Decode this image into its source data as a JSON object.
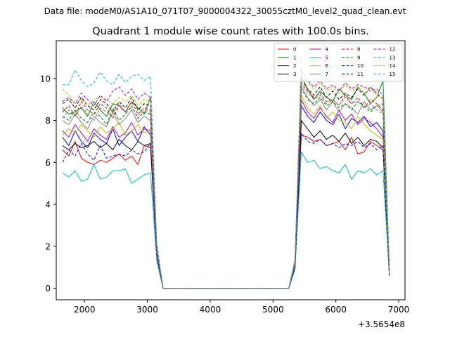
{
  "figure": {
    "suptitle": "Data file: modeM0/AS1A10_071T07_9000004322_30055cztM0_level2_quad_clean.evt"
  },
  "chart_data": {
    "type": "line",
    "title": "Quadrant 1 module wise count rates with 100.0s bins.",
    "xlabel": "",
    "ylabel": "",
    "x_offset_label": "+3.5654e8",
    "xlim": [
      1550,
      7100
    ],
    "ylim": [
      -0.55,
      11.8
    ],
    "xticks": [
      2000,
      3000,
      4000,
      5000,
      6000,
      7000
    ],
    "yticks": [
      0,
      2,
      4,
      6,
      8,
      10
    ],
    "grid": false,
    "legend": {
      "placement": "top-right",
      "columns": 4
    },
    "x": [
      1650,
      1750,
      1850,
      1950,
      2050,
      2150,
      2250,
      2350,
      2450,
      2550,
      2650,
      2750,
      2850,
      2950,
      3050,
      3150,
      3250,
      3350,
      3450,
      3550,
      3650,
      3750,
      3850,
      3950,
      4050,
      4150,
      4250,
      4350,
      4450,
      4550,
      4650,
      4750,
      4850,
      4950,
      5050,
      5150,
      5250,
      5350,
      5450,
      5550,
      5650,
      5750,
      5850,
      5950,
      6050,
      6150,
      6250,
      6350,
      6450,
      6550,
      6650,
      6750,
      6850
    ],
    "series": [
      {
        "name": "0",
        "color": "#ff0000",
        "dash": "solid",
        "values": [
          6.6,
          6.3,
          7.0,
          6.2,
          6.0,
          5.9,
          6.1,
          6.0,
          6.2,
          6.4,
          6.1,
          6.3,
          5.9,
          6.8,
          6.7,
          1.5,
          0,
          0,
          0,
          0,
          0,
          0,
          0,
          0,
          0,
          0,
          0,
          0,
          0,
          0,
          0,
          0,
          0,
          0,
          0,
          0,
          0,
          1.0,
          7.3,
          7.2,
          7.0,
          7.1,
          6.8,
          6.9,
          7.0,
          6.6,
          7.2,
          6.4,
          6.5,
          7.0,
          6.8,
          6.6,
          0.8
        ]
      },
      {
        "name": "1",
        "color": "#008000",
        "dash": "solid",
        "values": [
          8.6,
          8.3,
          8.4,
          8.6,
          8.2,
          8.9,
          8.5,
          8.2,
          8.8,
          8.7,
          8.4,
          8.9,
          8.6,
          8.3,
          9.1,
          1.8,
          0,
          0,
          0,
          0,
          0,
          0,
          0,
          0,
          0,
          0,
          0,
          0,
          0,
          0,
          0,
          0,
          0,
          0,
          0,
          0,
          0,
          1.3,
          10.1,
          9.5,
          9.0,
          9.4,
          9.1,
          8.9,
          9.5,
          9.2,
          9.0,
          9.6,
          9.3,
          8.8,
          9.1,
          9.9,
          0.9
        ]
      },
      {
        "name": "2",
        "color": "#0000ff",
        "dash": "solid",
        "values": [
          7.2,
          6.8,
          7.5,
          7.0,
          6.7,
          7.4,
          7.1,
          6.9,
          7.6,
          6.8,
          7.2,
          7.5,
          7.0,
          7.7,
          7.3,
          1.6,
          0,
          0,
          0,
          0,
          0,
          0,
          0,
          0,
          0,
          0,
          0,
          0,
          0,
          0,
          0,
          0,
          0,
          0,
          0,
          0,
          0,
          1.1,
          8.7,
          8.2,
          7.9,
          8.4,
          8.0,
          7.8,
          8.3,
          7.6,
          8.1,
          7.9,
          8.2,
          7.7,
          7.9,
          7.5,
          0.8
        ]
      },
      {
        "name": "3",
        "color": "#000000",
        "dash": "solid",
        "values": [
          6.8,
          6.6,
          6.9,
          6.7,
          6.8,
          7.0,
          6.7,
          6.9,
          6.6,
          7.1,
          6.8,
          6.6,
          7.0,
          6.8,
          6.9,
          1.6,
          0,
          0,
          0,
          0,
          0,
          0,
          0,
          0,
          0,
          0,
          0,
          0,
          0,
          0,
          0,
          0,
          0,
          0,
          0,
          0,
          0,
          1.0,
          8.0,
          7.6,
          7.2,
          7.5,
          7.1,
          7.3,
          7.0,
          7.4,
          6.9,
          7.2,
          6.8,
          7.1,
          7.0,
          6.7,
          0.6
        ]
      },
      {
        "name": "4",
        "color": "#bf00bf",
        "dash": "solid",
        "values": [
          7.5,
          7.2,
          7.8,
          7.4,
          7.0,
          7.6,
          7.3,
          7.1,
          7.7,
          7.2,
          7.4,
          7.9,
          7.3,
          7.6,
          7.5,
          1.7,
          0,
          0,
          0,
          0,
          0,
          0,
          0,
          0,
          0,
          0,
          0,
          0,
          0,
          0,
          0,
          0,
          0,
          0,
          0,
          0,
          0,
          1.2,
          9.0,
          8.4,
          8.1,
          8.6,
          8.2,
          7.9,
          8.5,
          8.0,
          8.3,
          7.8,
          8.1,
          7.9,
          7.6,
          7.2,
          0.8
        ]
      },
      {
        "name": "5",
        "color": "#00bfbf",
        "dash": "solid",
        "values": [
          5.5,
          5.3,
          5.6,
          5.1,
          5.2,
          5.9,
          5.2,
          5.3,
          5.6,
          5.6,
          5.7,
          5.0,
          5.2,
          5.4,
          5.5,
          1.3,
          0,
          0,
          0,
          0,
          0,
          0,
          0,
          0,
          0,
          0,
          0,
          0,
          0,
          0,
          0,
          0,
          0,
          0,
          0,
          0,
          0,
          0.9,
          6.5,
          6.0,
          6.1,
          5.7,
          5.8,
          5.6,
          5.5,
          5.9,
          5.2,
          5.6,
          5.5,
          5.7,
          5.4,
          5.6,
          0.7
        ]
      },
      {
        "name": "6",
        "color": "#bfbf00",
        "dash": "solid",
        "values": [
          7.3,
          7.6,
          7.4,
          7.8,
          7.5,
          7.2,
          7.7,
          7.4,
          7.6,
          7.9,
          7.3,
          7.5,
          7.8,
          7.4,
          7.6,
          1.7,
          0,
          0,
          0,
          0,
          0,
          0,
          0,
          0,
          0,
          0,
          0,
          0,
          0,
          0,
          0,
          0,
          0,
          0,
          0,
          0,
          0,
          1.1,
          9.2,
          8.6,
          8.3,
          8.7,
          8.1,
          8.4,
          8.0,
          7.9,
          7.6,
          8.2,
          7.8,
          7.5,
          7.3,
          7.1,
          0.7
        ]
      },
      {
        "name": "7",
        "color": "#808080",
        "dash": "solid",
        "values": [
          8.0,
          7.8,
          8.3,
          7.9,
          7.6,
          8.2,
          7.9,
          7.7,
          8.4,
          7.8,
          8.1,
          8.5,
          7.9,
          8.2,
          8.0,
          1.8,
          0,
          0,
          0,
          0,
          0,
          0,
          0,
          0,
          0,
          0,
          0,
          0,
          0,
          0,
          0,
          0,
          0,
          0,
          0,
          0,
          0,
          1.2,
          9.6,
          9.1,
          8.7,
          9.0,
          8.5,
          8.9,
          8.4,
          8.8,
          8.6,
          8.3,
          8.9,
          8.5,
          8.7,
          8.4,
          0.8
        ]
      },
      {
        "name": "8",
        "color": "#ff0000",
        "dash": "dashed",
        "values": [
          8.4,
          8.7,
          8.2,
          8.9,
          8.5,
          8.3,
          8.8,
          8.6,
          8.1,
          8.7,
          8.4,
          8.9,
          8.3,
          8.6,
          8.5,
          1.9,
          0,
          0,
          0,
          0,
          0,
          0,
          0,
          0,
          0,
          0,
          0,
          0,
          0,
          0,
          0,
          0,
          0,
          0,
          0,
          0,
          0,
          1.2,
          9.8,
          9.4,
          9.1,
          9.3,
          8.9,
          9.0,
          8.7,
          9.2,
          8.8,
          9.1,
          8.6,
          9.0,
          8.8,
          8.5,
          0.9
        ]
      },
      {
        "name": "9",
        "color": "#008000",
        "dash": "dashed",
        "values": [
          8.2,
          8.0,
          8.5,
          8.1,
          7.9,
          8.4,
          8.2,
          7.8,
          8.6,
          8.0,
          8.3,
          8.7,
          8.1,
          8.4,
          8.3,
          1.8,
          0,
          0,
          0,
          0,
          0,
          0,
          0,
          0,
          0,
          0,
          0,
          0,
          0,
          0,
          0,
          0,
          0,
          0,
          0,
          0,
          0,
          1.2,
          9.5,
          9.0,
          8.8,
          9.1,
          8.7,
          8.9,
          8.6,
          8.8,
          8.5,
          8.9,
          8.7,
          8.4,
          8.7,
          8.8,
          0.9
        ]
      },
      {
        "name": "10",
        "color": "#0000ff",
        "dash": "dashed",
        "values": [
          6.0,
          6.6,
          6.3,
          6.9,
          6.4,
          6.1,
          6.8,
          6.2,
          6.3,
          6.4,
          6.3,
          6.6,
          6.4,
          6.5,
          6.9,
          1.5,
          0,
          0,
          0,
          0,
          0,
          0,
          0,
          0,
          0,
          0,
          0,
          0,
          0,
          0,
          0,
          0,
          0,
          0,
          0,
          0,
          0,
          1.0,
          7.4,
          7.0,
          6.9,
          7.1,
          6.8,
          6.9,
          6.7,
          6.9,
          6.8,
          7.0,
          6.7,
          6.9,
          6.6,
          6.8,
          0.7
        ]
      },
      {
        "name": "11",
        "color": "#000000",
        "dash": "dashed",
        "values": [
          8.8,
          9.0,
          8.6,
          9.1,
          8.7,
          8.5,
          9.0,
          8.8,
          8.4,
          8.9,
          8.6,
          9.1,
          8.5,
          8.8,
          8.7,
          1.9,
          0,
          0,
          0,
          0,
          0,
          0,
          0,
          0,
          0,
          0,
          0,
          0,
          0,
          0,
          0,
          0,
          0,
          0,
          0,
          0,
          0,
          1.3,
          10.0,
          9.5,
          9.2,
          9.6,
          9.1,
          9.4,
          9.0,
          9.3,
          9.1,
          9.5,
          9.2,
          9.6,
          9.3,
          9.0,
          0.9
        ]
      },
      {
        "name": "12",
        "color": "#bf00bf",
        "dash": "dashed",
        "values": [
          8.9,
          9.1,
          8.8,
          9.3,
          9.0,
          8.7,
          9.2,
          8.9,
          9.4,
          9.6,
          9.2,
          9.5,
          9.0,
          9.3,
          9.1,
          2.0,
          0,
          0,
          0,
          0,
          0,
          0,
          0,
          0,
          0,
          0,
          0,
          0,
          0,
          0,
          0,
          0,
          0,
          0,
          0,
          0,
          0,
          1.3,
          10.4,
          9.9,
          9.6,
          9.9,
          9.5,
          9.7,
          9.4,
          9.8,
          9.5,
          9.7,
          9.6,
          9.4,
          9.5,
          9.2,
          1.0
        ]
      },
      {
        "name": "13",
        "color": "#00bfbf",
        "dash": "dashed",
        "values": [
          9.7,
          9.7,
          10.4,
          9.9,
          9.6,
          9.8,
          10.3,
          9.9,
          9.7,
          10.2,
          9.8,
          10.1,
          10.2,
          9.9,
          10.1,
          2.2,
          0,
          0,
          0,
          0,
          0,
          0,
          0,
          0,
          0,
          0,
          0,
          0,
          0,
          0,
          0,
          0,
          0,
          0,
          0,
          0,
          0,
          1.4,
          11.0,
          11.2,
          10.6,
          10.4,
          10.2,
          10.6,
          10.5,
          10.2,
          10.5,
          10.3,
          10.4,
          10.3,
          10.2,
          10.1,
          1.0
        ]
      },
      {
        "name": "14",
        "color": "#bfbf00",
        "dash": "dashed",
        "values": [
          9.5,
          9.2,
          8.8,
          9.0,
          8.7,
          9.0,
          9.1,
          9.0,
          8.8,
          9.1,
          8.9,
          9.2,
          8.7,
          9.0,
          8.9,
          2.0,
          0,
          0,
          0,
          0,
          0,
          0,
          0,
          0,
          0,
          0,
          0,
          0,
          0,
          0,
          0,
          0,
          0,
          0,
          0,
          0,
          0,
          1.3,
          10.3,
          9.8,
          9.5,
          9.8,
          9.4,
          9.6,
          9.3,
          9.7,
          9.4,
          9.6,
          9.3,
          9.5,
          9.2,
          9.0,
          0.9
        ]
      },
      {
        "name": "15",
        "color": "#808080",
        "dash": "dashed",
        "values": [
          8.1,
          8.5,
          8.2,
          8.7,
          8.3,
          8.0,
          8.6,
          8.4,
          8.2,
          8.8,
          8.4,
          8.6,
          8.2,
          8.5,
          8.4,
          1.8,
          0,
          0,
          0,
          0,
          0,
          0,
          0,
          0,
          0,
          0,
          0,
          0,
          0,
          0,
          0,
          0,
          0,
          0,
          0,
          0,
          0,
          1.2,
          9.7,
          9.3,
          9.0,
          9.2,
          8.8,
          9.0,
          8.7,
          9.1,
          8.8,
          8.9,
          8.6,
          8.8,
          8.5,
          8.3,
          0.8
        ]
      }
    ]
  }
}
